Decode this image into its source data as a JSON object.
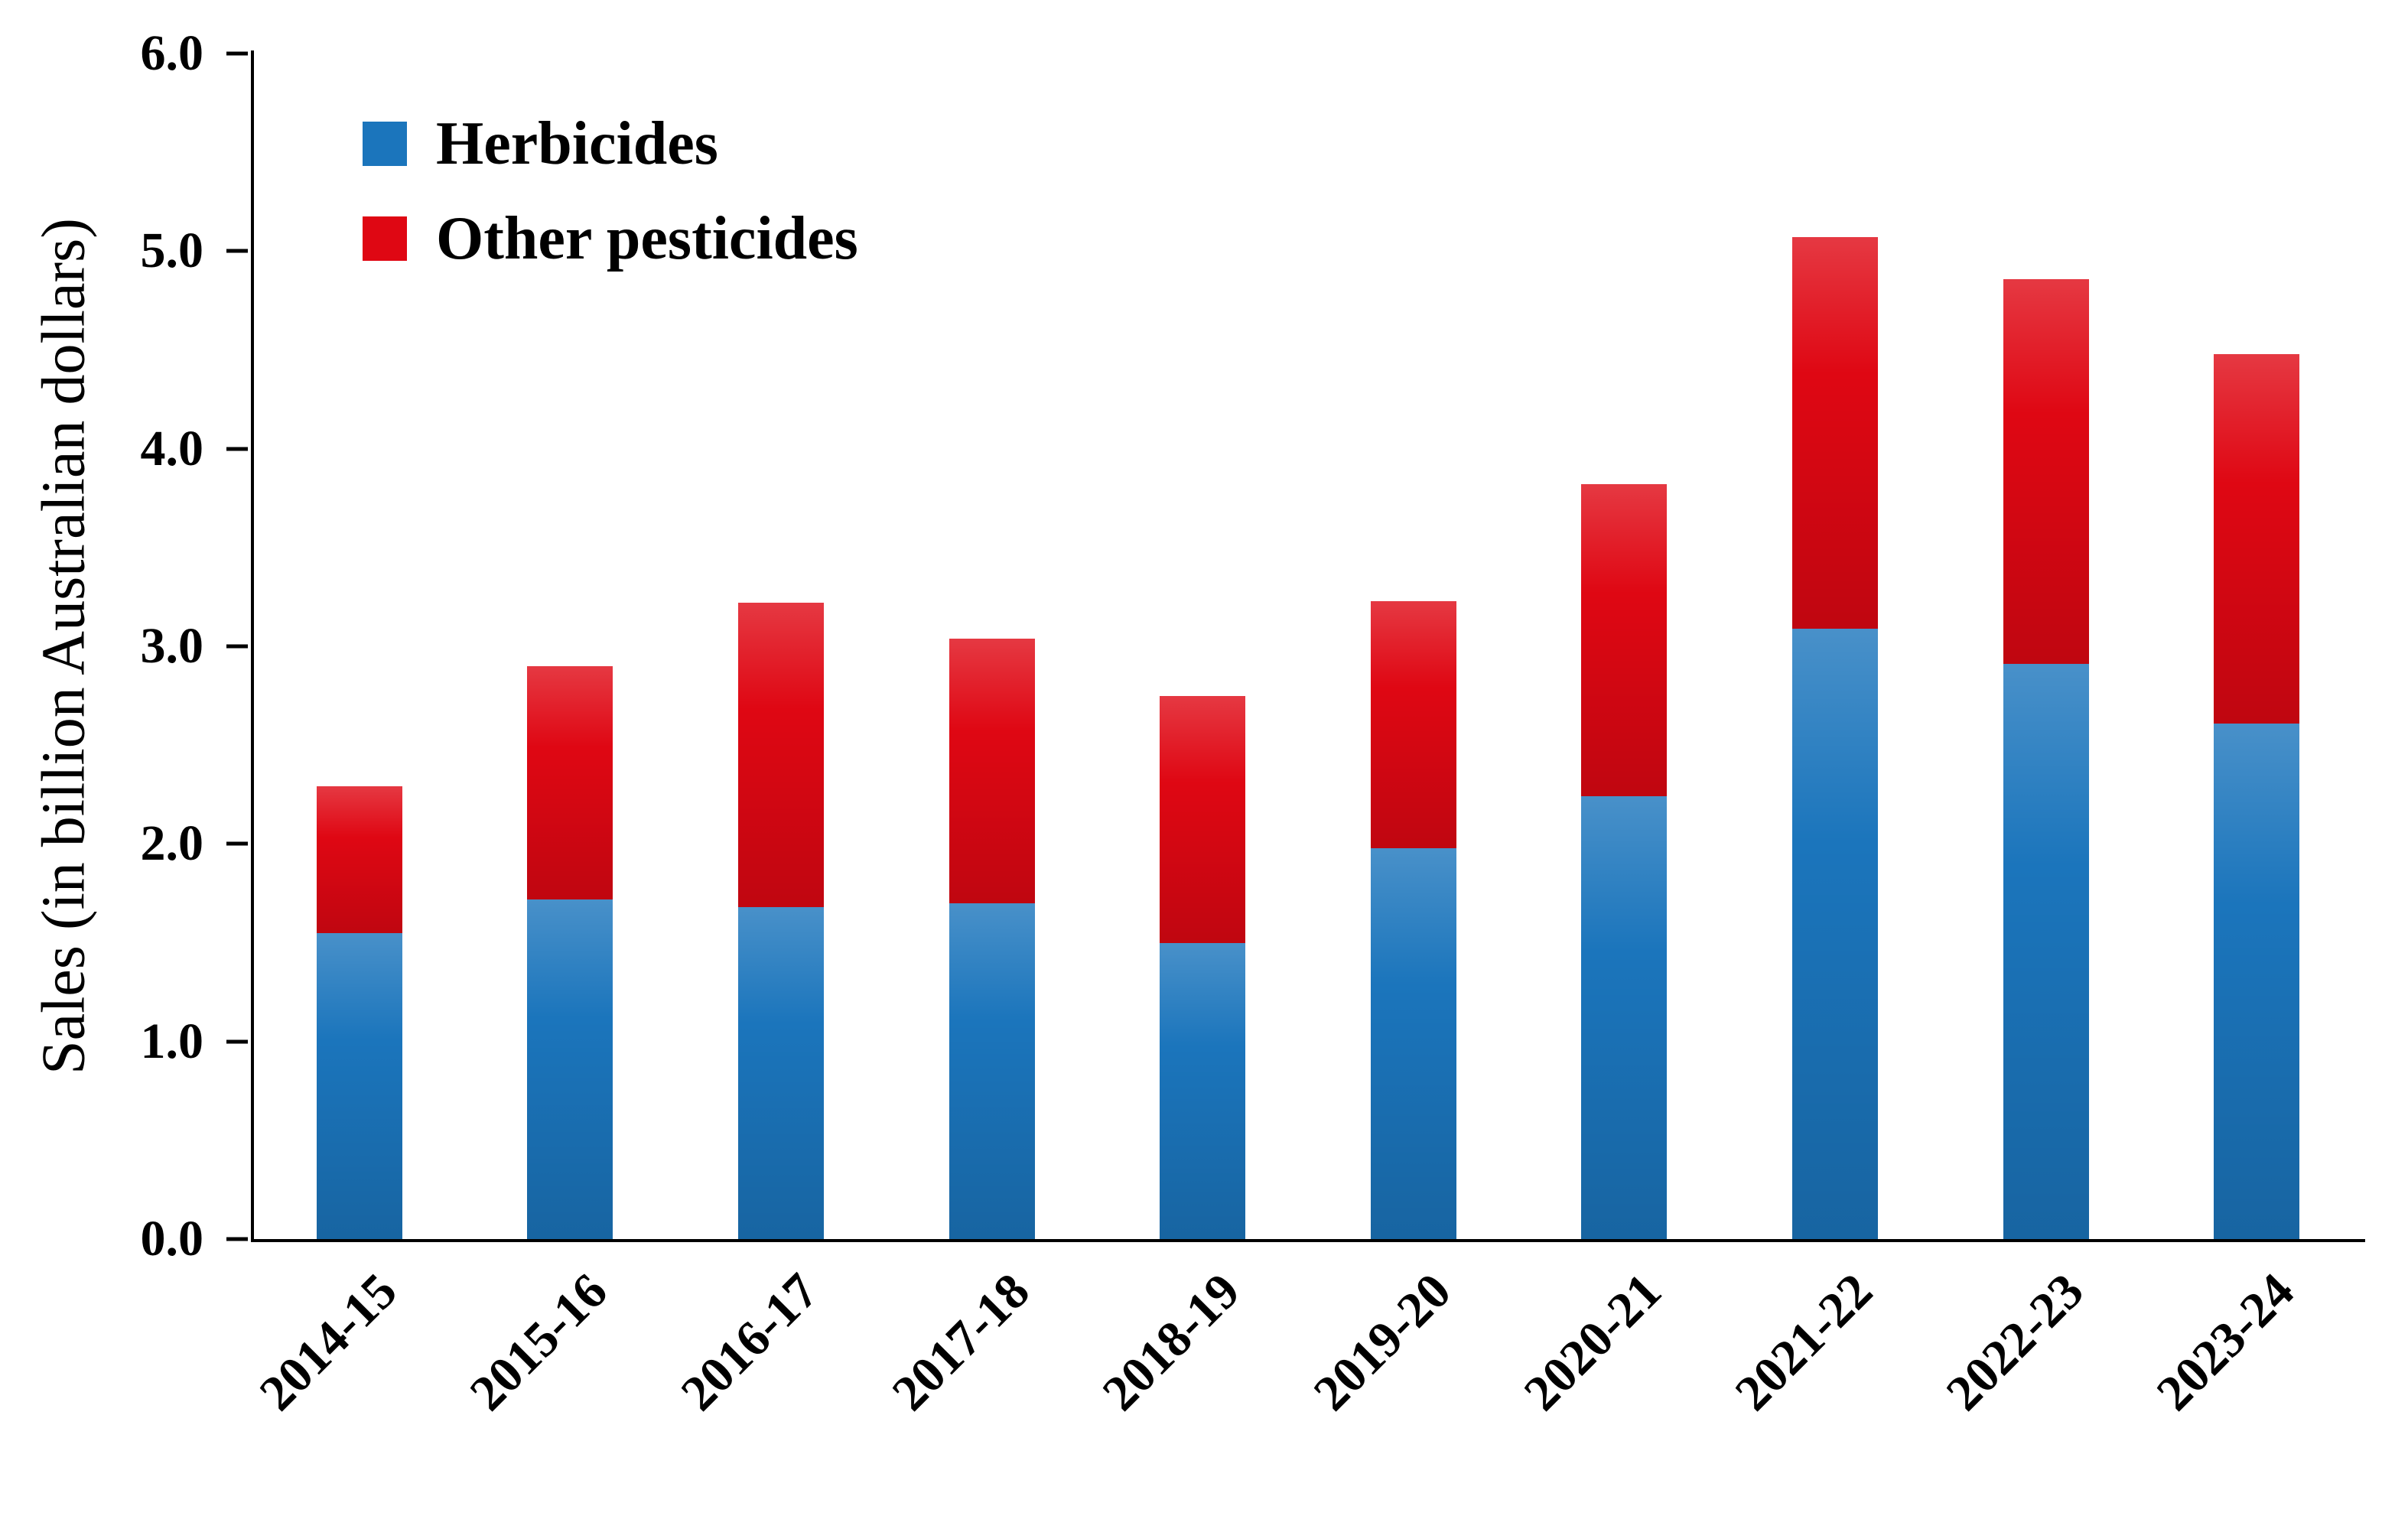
{
  "chart_data": {
    "type": "bar",
    "stacked": true,
    "title": "",
    "xlabel": "",
    "ylabel": "Sales (in billion Australian dollars)",
    "ylim": [
      0,
      6
    ],
    "ytick_step": 1,
    "ytick_labels": [
      "0.0",
      "1.0",
      "2.0",
      "3.0",
      "4.0",
      "5.0",
      "6.0"
    ],
    "grid": false,
    "legend_position": "top-left-inside",
    "categories": [
      "2014-15",
      "2015-16",
      "2016-17",
      "2017-18",
      "2018-19",
      "2019-20",
      "2020-21",
      "2021-22",
      "2022-23",
      "2023-24"
    ],
    "series": [
      {
        "name": "Herbicides",
        "color": "#1B75BC",
        "values": [
          1.55,
          1.72,
          1.68,
          1.7,
          1.5,
          1.98,
          2.24,
          3.09,
          2.91,
          2.61
        ]
      },
      {
        "name": "Other pesticides",
        "color": "#DF0713",
        "values": [
          0.74,
          1.18,
          1.54,
          1.34,
          1.25,
          1.25,
          1.58,
          1.98,
          1.95,
          1.87
        ]
      }
    ],
    "totals": [
      2.29,
      2.9,
      3.22,
      3.04,
      2.75,
      3.23,
      3.82,
      5.07,
      4.86,
      4.48
    ]
  }
}
